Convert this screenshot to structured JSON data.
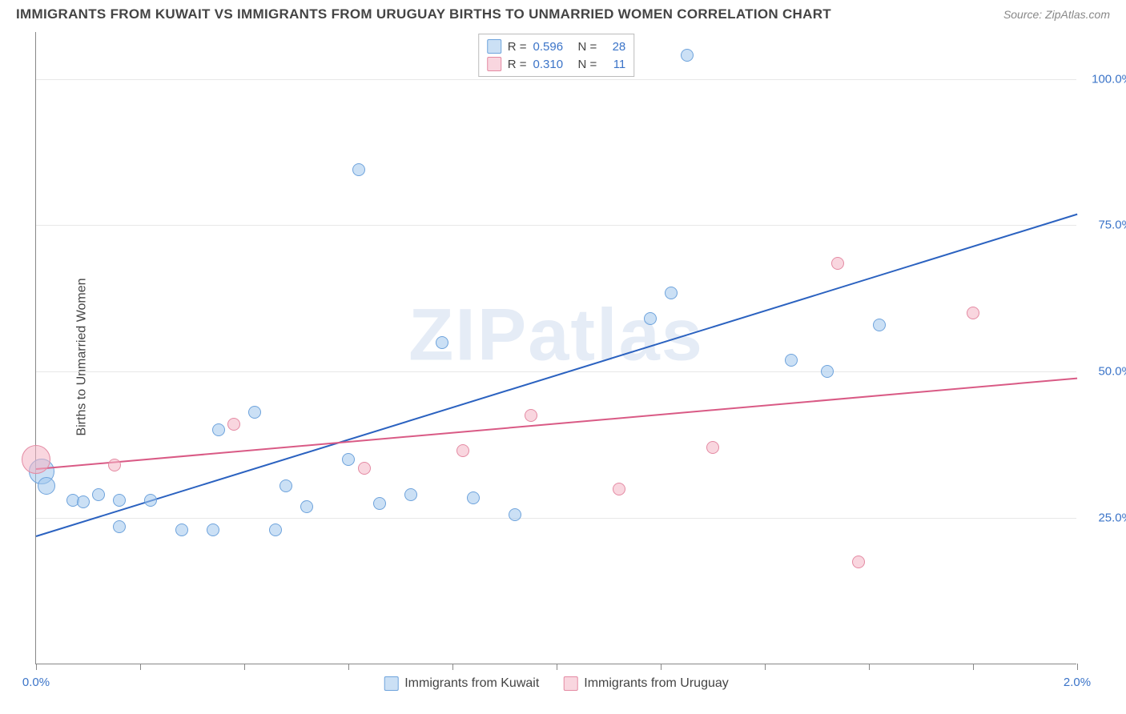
{
  "title": "IMMIGRANTS FROM KUWAIT VS IMMIGRANTS FROM URUGUAY BIRTHS TO UNMARRIED WOMEN CORRELATION CHART",
  "source": "Source: ZipAtlas.com",
  "watermark": "ZIPatlas",
  "y_axis_label": "Births to Unmarried Women",
  "chart": {
    "type": "scatter",
    "xlim": [
      0.0,
      2.0
    ],
    "ylim": [
      0.0,
      108.0
    ],
    "x_ticks": [
      0.0,
      0.2,
      0.4,
      0.6,
      0.8,
      1.0,
      1.2,
      1.4,
      1.6,
      1.8,
      2.0
    ],
    "x_tick_labels_shown": {
      "0.0": "0.0%",
      "2.0": "2.0%"
    },
    "y_gridlines": [
      25.0,
      50.0,
      75.0,
      100.0
    ],
    "y_tick_labels": {
      "25.0": "25.0%",
      "50.0": "50.0%",
      "75.0": "75.0%",
      "100.0": "100.0%"
    },
    "background_color": "#ffffff",
    "grid_color": "#e8e8e8",
    "axis_color": "#888888",
    "tick_label_color": "#3b74c8",
    "series": [
      {
        "name": "Immigrants from Kuwait",
        "key": "kuwait",
        "fill": "rgba(160,198,237,0.55)",
        "stroke": "#6ea3dc",
        "line_color": "#2b62c0",
        "R": "0.596",
        "N": "28",
        "trend": {
          "x0": 0.0,
          "y0": 22.0,
          "x1": 2.0,
          "y1": 77.0
        },
        "points": [
          {
            "x": 0.01,
            "y": 33.0,
            "r": 16
          },
          {
            "x": 0.02,
            "y": 30.5,
            "r": 11
          },
          {
            "x": 0.07,
            "y": 28.0,
            "r": 8
          },
          {
            "x": 0.09,
            "y": 27.8,
            "r": 8
          },
          {
            "x": 0.12,
            "y": 29.0,
            "r": 8
          },
          {
            "x": 0.16,
            "y": 28.0,
            "r": 8
          },
          {
            "x": 0.16,
            "y": 23.5,
            "r": 8
          },
          {
            "x": 0.22,
            "y": 28.0,
            "r": 8
          },
          {
            "x": 0.28,
            "y": 23.0,
            "r": 8
          },
          {
            "x": 0.34,
            "y": 23.0,
            "r": 8
          },
          {
            "x": 0.35,
            "y": 40.0,
            "r": 8
          },
          {
            "x": 0.42,
            "y": 43.0,
            "r": 8
          },
          {
            "x": 0.46,
            "y": 23.0,
            "r": 8
          },
          {
            "x": 0.48,
            "y": 30.5,
            "r": 8
          },
          {
            "x": 0.52,
            "y": 27.0,
            "r": 8
          },
          {
            "x": 0.6,
            "y": 35.0,
            "r": 8
          },
          {
            "x": 0.62,
            "y": 84.5,
            "r": 8
          },
          {
            "x": 0.66,
            "y": 27.5,
            "r": 8
          },
          {
            "x": 0.72,
            "y": 29.0,
            "r": 8
          },
          {
            "x": 0.78,
            "y": 55.0,
            "r": 8
          },
          {
            "x": 0.84,
            "y": 28.5,
            "r": 8
          },
          {
            "x": 0.92,
            "y": 25.5,
            "r": 8
          },
          {
            "x": 1.18,
            "y": 59.0,
            "r": 8
          },
          {
            "x": 1.22,
            "y": 63.5,
            "r": 8
          },
          {
            "x": 1.25,
            "y": 104.0,
            "r": 8
          },
          {
            "x": 1.45,
            "y": 52.0,
            "r": 8
          },
          {
            "x": 1.52,
            "y": 50.0,
            "r": 8
          },
          {
            "x": 1.62,
            "y": 58.0,
            "r": 8
          }
        ]
      },
      {
        "name": "Immigrants from Uruguay",
        "key": "uruguay",
        "fill": "rgba(244,180,196,0.55)",
        "stroke": "#e48aa3",
        "line_color": "#d95a85",
        "R": "0.310",
        "N": "11",
        "trend": {
          "x0": 0.0,
          "y0": 33.5,
          "x1": 2.0,
          "y1": 49.0
        },
        "points": [
          {
            "x": 0.0,
            "y": 35.0,
            "r": 18
          },
          {
            "x": 0.15,
            "y": 34.0,
            "r": 8
          },
          {
            "x": 0.38,
            "y": 41.0,
            "r": 8
          },
          {
            "x": 0.63,
            "y": 33.5,
            "r": 8
          },
          {
            "x": 0.82,
            "y": 36.5,
            "r": 8
          },
          {
            "x": 0.95,
            "y": 42.5,
            "r": 8
          },
          {
            "x": 1.12,
            "y": 30.0,
            "r": 8
          },
          {
            "x": 1.3,
            "y": 37.0,
            "r": 8
          },
          {
            "x": 1.54,
            "y": 68.5,
            "r": 8
          },
          {
            "x": 1.58,
            "y": 17.5,
            "r": 8
          },
          {
            "x": 1.8,
            "y": 60.0,
            "r": 8
          }
        ]
      }
    ]
  },
  "stats_legend_labels": {
    "R": "R =",
    "N": "N ="
  },
  "bottom_legend": [
    {
      "label": "Immigrants from Kuwait",
      "key": "kuwait"
    },
    {
      "label": "Immigrants from Uruguay",
      "key": "uruguay"
    }
  ]
}
